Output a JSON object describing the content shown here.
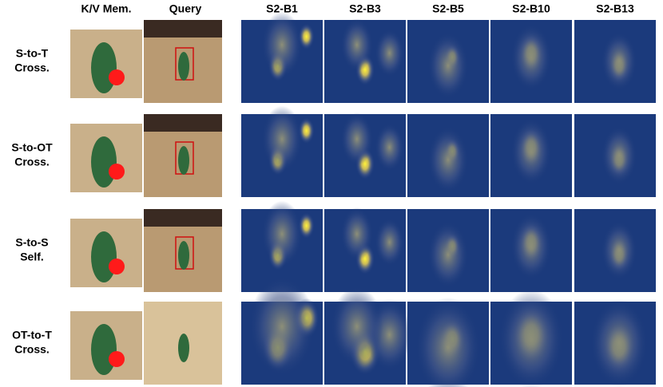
{
  "columns": [
    "K/V Mem.",
    "Query",
    "S2-B1",
    "S2-B3",
    "S2-B5",
    "S2-B10",
    "S2-B13"
  ],
  "rows": [
    {
      "label": [
        "S-to-T",
        "Cross."
      ]
    },
    {
      "label": [
        "S-to-OT",
        "Cross."
      ]
    },
    {
      "label": [
        "S-to-S",
        "Self."
      ]
    },
    {
      "label": [
        "OT-to-T",
        "Cross."
      ]
    }
  ]
}
